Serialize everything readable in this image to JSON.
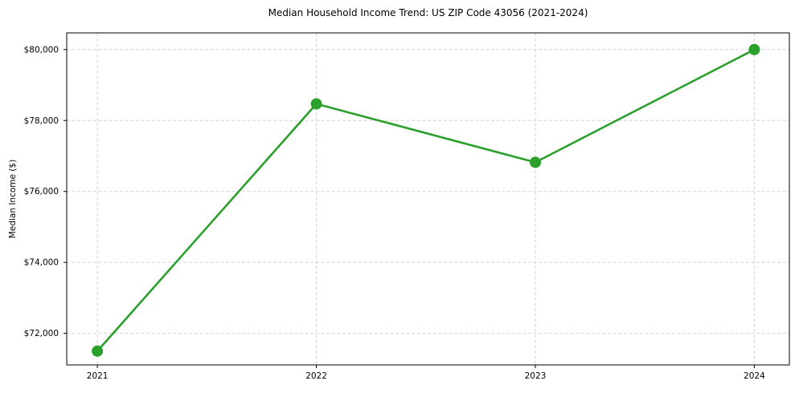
{
  "chart_data": {
    "type": "line",
    "title": "Median Household Income Trend: US ZIP Code 43056 (2021-2024)",
    "xlabel": "",
    "ylabel": "Median Income ($)",
    "x": [
      2021,
      2022,
      2023,
      2024
    ],
    "values": [
      71500,
      78470,
      76820,
      80000
    ],
    "series": [
      {
        "name": "Median household income",
        "values": [
          71500,
          78470,
          76820,
          80000
        ]
      }
    ],
    "xlim": [
      2020.86,
      2024.16
    ],
    "ylim": [
      71110,
      80470
    ],
    "xticks": [
      2021,
      2022,
      2023,
      2024
    ],
    "xtick_labels": [
      "2021",
      "2022",
      "2023",
      "2024"
    ],
    "yticks": [
      72000,
      74000,
      76000,
      78000,
      80000
    ],
    "ytick_labels": [
      "$72,000",
      "$74,000",
      "$76,000",
      "$78,000",
      "$80,000"
    ],
    "grid": true,
    "legend_position": "none",
    "line_color": "#2ca02c",
    "marker_color": "#2ca02c",
    "grid_color": "#d3d3d3",
    "spine_color": "#000000",
    "tick_label_color": "#000000",
    "marker": "circle",
    "marker_radius": 7,
    "line_width": 2.6
  }
}
